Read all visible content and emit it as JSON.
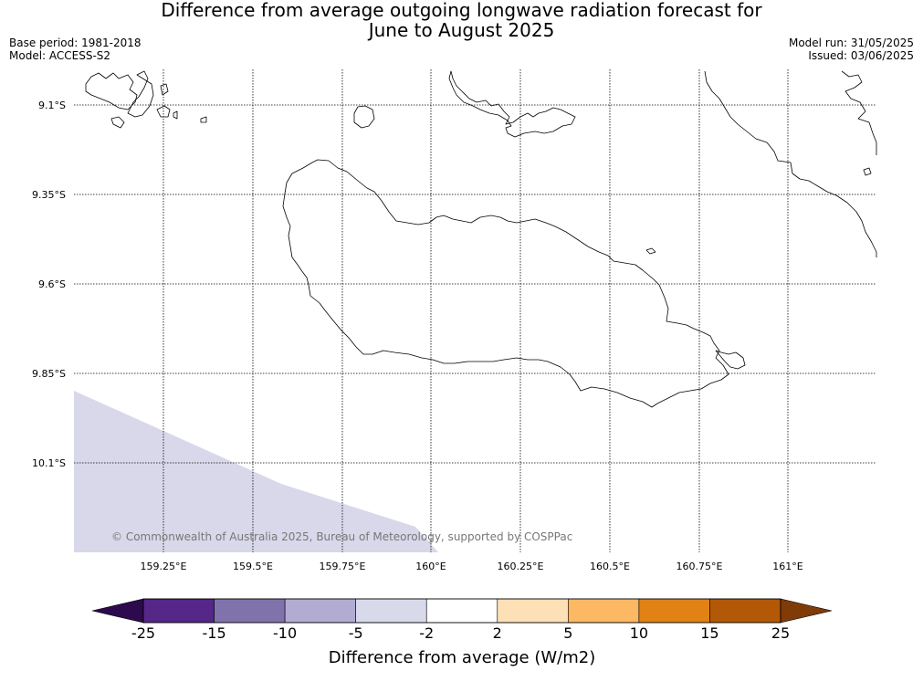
{
  "title": {
    "line1": "Difference from average outgoing longwave radiation forecast for",
    "line2": "June to August 2025"
  },
  "meta_left": {
    "base_period": "Base period: 1981-2018",
    "model": "Model: ACCESS-S2"
  },
  "meta_right": {
    "model_run": "Model run: 31/05/2025",
    "issued": "Issued: 03/06/2025"
  },
  "map": {
    "lat_labels": [
      "9.1°S",
      "9.35°S",
      "9.6°S",
      "9.85°S",
      "10.1°S"
    ],
    "lon_labels": [
      "159.25°E",
      "159.5°E",
      "159.75°E",
      "160°E",
      "160.25°E",
      "160.5°E",
      "160.75°E",
      "161°E"
    ],
    "field_color": "#d8d8ea",
    "field_category": "-5 to -2",
    "copyright": "© Commonwealth of Australia 2025, Bureau of Meteorology, supported by COSPPac"
  },
  "legend": {
    "title": "Difference from average (W/m2)",
    "ticks": [
      "-25",
      "-15",
      "-10",
      "-5",
      "-2",
      "2",
      "5",
      "10",
      "15",
      "25"
    ],
    "under_color": "#2d0a4e",
    "over_color": "#7f3b08",
    "bins": [
      {
        "from": -25,
        "to": -15,
        "color": "#542788"
      },
      {
        "from": -15,
        "to": -10,
        "color": "#8073ac"
      },
      {
        "from": -10,
        "to": -5,
        "color": "#b2abd2"
      },
      {
        "from": -5,
        "to": -2,
        "color": "#d8daeb"
      },
      {
        "from": -2,
        "to": 2,
        "color": "#ffffff"
      },
      {
        "from": 2,
        "to": 5,
        "color": "#fee0b6"
      },
      {
        "from": 5,
        "to": 10,
        "color": "#fdb863"
      },
      {
        "from": 10,
        "to": 15,
        "color": "#e08214"
      },
      {
        "from": 15,
        "to": 25,
        "color": "#b35806"
      }
    ]
  }
}
